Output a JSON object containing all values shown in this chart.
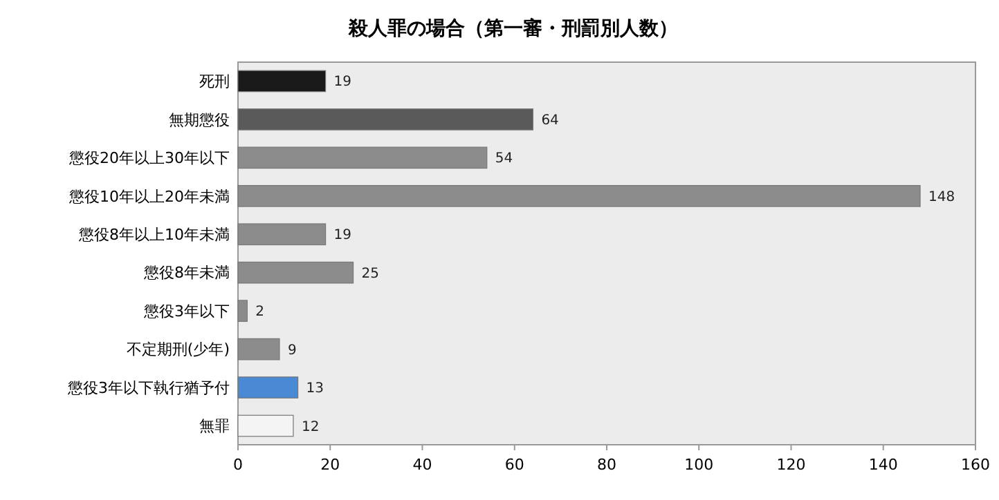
{
  "chart_data": {
    "type": "bar",
    "orientation": "horizontal",
    "title": "殺人罪の場合（第一審・刑罰別人数）",
    "categories": [
      "死刑",
      "無期懲役",
      "懲役20年以上30年以下",
      "懲役10年以上20年未満",
      "懲役8年以上10年未満",
      "懲役8年未満",
      "懲役3年以下",
      "不定期刑(少年)",
      "懲役3年以下執行猶予付",
      "無罪"
    ],
    "values": [
      19,
      64,
      54,
      148,
      19,
      25,
      2,
      9,
      13,
      12
    ],
    "colors": [
      "#1a1a1a",
      "#5a5a5a",
      "#8c8c8c",
      "#8c8c8c",
      "#8c8c8c",
      "#8c8c8c",
      "#8c8c8c",
      "#8c8c8c",
      "#4a8ad4",
      "#f4f4f4"
    ],
    "xlim": [
      0,
      160
    ],
    "xticks": [
      0,
      20,
      40,
      60,
      80,
      100,
      120,
      140,
      160
    ],
    "data_labels": true,
    "grid": false
  }
}
